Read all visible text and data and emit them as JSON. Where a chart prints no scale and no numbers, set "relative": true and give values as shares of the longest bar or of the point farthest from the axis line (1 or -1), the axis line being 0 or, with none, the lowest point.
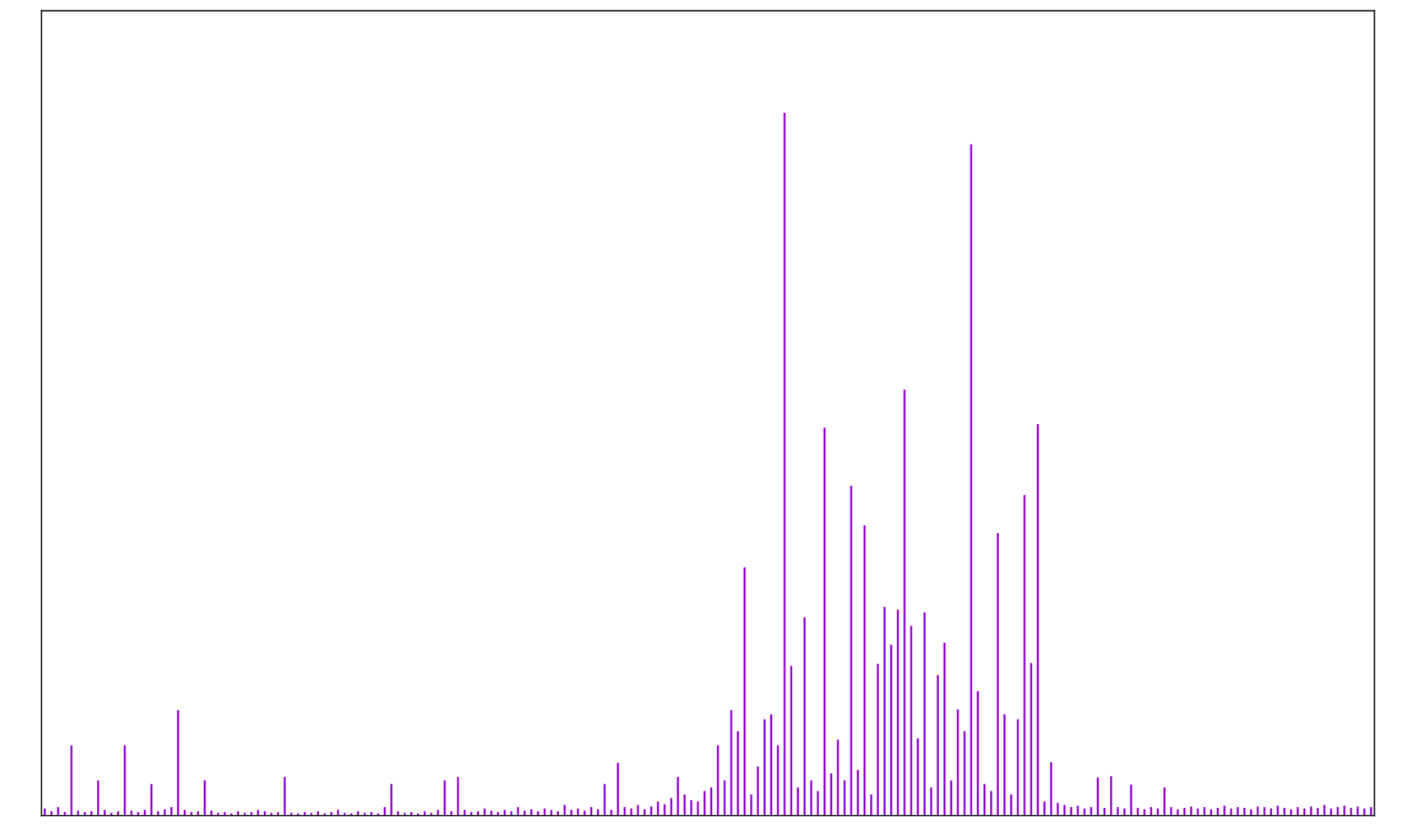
{
  "chart_data": {
    "type": "bar",
    "relative": true,
    "color": "#9400d3",
    "categories": [
      null,
      null,
      null,
      null,
      null,
      null,
      null,
      null,
      null,
      null,
      null,
      null,
      null,
      null,
      null,
      null,
      null,
      null,
      null,
      null,
      null,
      null,
      null,
      null,
      null,
      null,
      null,
      null,
      null,
      null,
      null,
      null,
      null,
      null,
      null,
      null,
      null,
      null,
      null,
      null,
      null,
      null,
      null,
      null,
      null,
      null,
      null,
      null,
      null,
      null,
      null,
      null,
      null,
      null,
      null,
      null,
      null,
      null,
      null,
      null,
      null,
      null,
      null,
      null,
      null,
      null,
      null,
      null,
      null,
      null,
      null,
      null,
      null,
      null,
      null,
      null,
      null,
      null,
      null,
      null,
      null,
      null,
      null,
      null,
      null,
      null,
      null,
      null,
      null,
      null,
      null,
      null,
      null,
      null,
      null,
      null,
      null,
      null,
      null,
      null,
      null,
      null,
      null,
      null,
      null,
      null,
      null,
      null,
      null,
      null,
      null,
      null,
      null,
      null,
      null,
      null,
      null,
      null,
      null,
      null,
      null,
      null,
      null,
      null,
      null,
      null,
      null,
      null,
      null,
      null,
      null,
      null,
      null,
      null,
      null,
      null,
      null,
      null,
      null,
      null,
      null,
      null,
      null,
      null,
      null,
      null,
      null,
      null,
      null,
      null,
      null,
      null,
      null,
      null,
      null,
      null,
      null,
      null,
      null,
      null,
      null,
      null,
      null,
      null,
      null,
      null,
      null,
      null,
      null,
      null,
      null,
      null,
      null,
      null,
      null,
      null,
      null,
      null,
      null,
      null,
      null,
      null,
      null,
      null,
      null,
      null,
      null,
      null,
      null,
      null,
      null,
      null,
      null,
      null,
      null,
      null,
      null,
      null,
      null,
      null
    ],
    "values": [
      0.01,
      0.006,
      0.012,
      0.005,
      0.1,
      0.007,
      0.005,
      0.006,
      0.05,
      0.008,
      0.004,
      0.006,
      0.1,
      0.007,
      0.005,
      0.008,
      0.045,
      0.006,
      0.009,
      0.012,
      0.15,
      0.008,
      0.005,
      0.006,
      0.05,
      0.007,
      0.004,
      0.005,
      0.003,
      0.006,
      0.004,
      0.005,
      0.008,
      0.006,
      0.004,
      0.005,
      0.055,
      0.004,
      0.003,
      0.005,
      0.004,
      0.006,
      0.003,
      0.005,
      0.008,
      0.004,
      0.003,
      0.006,
      0.004,
      0.005,
      0.003,
      0.012,
      0.045,
      0.006,
      0.004,
      0.005,
      0.003,
      0.006,
      0.004,
      0.008,
      0.05,
      0.006,
      0.055,
      0.008,
      0.005,
      0.006,
      0.01,
      0.007,
      0.005,
      0.008,
      0.006,
      0.012,
      0.007,
      0.009,
      0.006,
      0.01,
      0.008,
      0.006,
      0.015,
      0.008,
      0.01,
      0.007,
      0.012,
      0.009,
      0.045,
      0.008,
      0.075,
      0.012,
      0.01,
      0.015,
      0.009,
      0.013,
      0.02,
      0.016,
      0.025,
      0.055,
      0.03,
      0.022,
      0.02,
      0.035,
      0.04,
      0.1,
      0.05,
      0.15,
      0.12,
      0.353,
      0.03,
      0.07,
      0.137,
      0.144,
      0.1,
      1.0,
      0.213,
      0.04,
      0.282,
      0.05,
      0.035,
      0.552,
      0.06,
      0.108,
      0.05,
      0.469,
      0.065,
      0.413,
      0.03,
      0.216,
      0.297,
      0.243,
      0.293,
      0.606,
      0.27,
      0.11,
      0.289,
      0.04,
      0.2,
      0.246,
      0.05,
      0.151,
      0.12,
      0.955,
      0.177,
      0.045,
      0.035,
      0.402,
      0.144,
      0.03,
      0.137,
      0.456,
      0.217,
      0.557,
      0.02,
      0.076,
      0.018,
      0.015,
      0.012,
      0.014,
      0.01,
      0.012,
      0.054,
      0.011,
      0.056,
      0.012,
      0.01,
      0.044,
      0.011,
      0.009,
      0.012,
      0.01,
      0.04,
      0.012,
      0.009,
      0.011,
      0.013,
      0.01,
      0.012,
      0.009,
      0.011,
      0.014,
      0.01,
      0.012,
      0.011,
      0.009,
      0.013,
      0.012,
      0.01,
      0.014,
      0.011,
      0.009,
      0.012,
      0.01,
      0.013,
      0.011,
      0.015,
      0.01,
      0.012,
      0.014,
      0.011,
      0.013,
      0.01,
      0.012
    ]
  }
}
